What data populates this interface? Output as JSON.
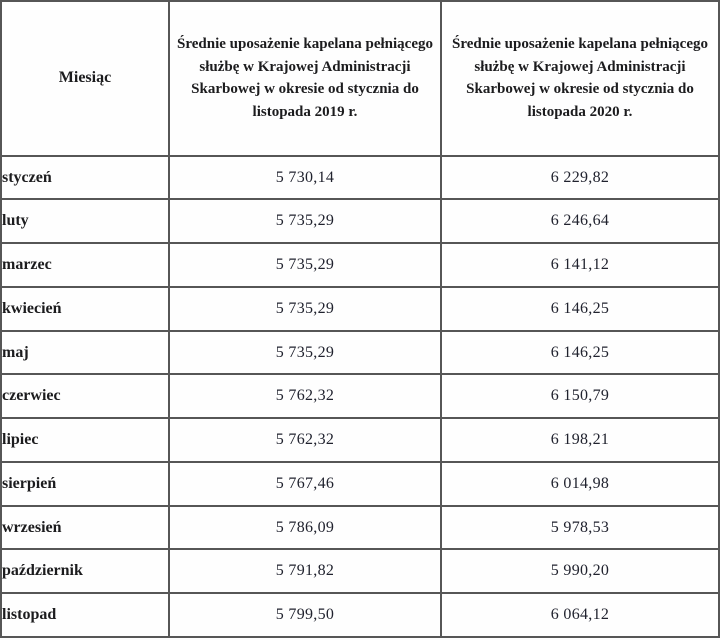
{
  "table": {
    "columns": {
      "month": "Miesiąc",
      "y2019": "Średnie uposażenie kapelana pełniącego służbę w Krajowej Administracji Skarbowej w okresie od stycznia do listopada 2019 r.",
      "y2020": "Średnie uposażenie kapelana pełniącego służbę w Krajowej Administracji Skarbowej w okresie od stycznia do listopada 2020 r."
    },
    "rows": [
      {
        "month": "styczeń",
        "v2019": "5 730,14",
        "v2020": "6 229,82"
      },
      {
        "month": "luty",
        "v2019": "5 735,29",
        "v2020": "6 246,64"
      },
      {
        "month": "marzec",
        "v2019": "5 735,29",
        "v2020": "6 141,12"
      },
      {
        "month": "kwiecień",
        "v2019": "5 735,29",
        "v2020": "6 146,25"
      },
      {
        "month": "maj",
        "v2019": "5 735,29",
        "v2020": "6 146,25"
      },
      {
        "month": "czerwiec",
        "v2019": "5 762,32",
        "v2020": "6 150,79"
      },
      {
        "month": "lipiec",
        "v2019": "5 762,32",
        "v2020": "6 198,21"
      },
      {
        "month": "sierpień",
        "v2019": "5 767,46",
        "v2020": "6 014,98"
      },
      {
        "month": "wrzesień",
        "v2019": "5 786,09",
        "v2020": "5 978,53"
      },
      {
        "month": "październik",
        "v2019": "5 791,82",
        "v2020": "5 990,20"
      },
      {
        "month": "listopad",
        "v2019": "5 799,50",
        "v2020": "6 064,12"
      }
    ]
  },
  "colors": {
    "border": "#565656",
    "text": "#1c1c1e",
    "background": "#fdfdfd"
  },
  "chart_data": {
    "type": "table",
    "title": "",
    "categories": [
      "styczeń",
      "luty",
      "marzec",
      "kwiecień",
      "maj",
      "czerwiec",
      "lipiec",
      "sierpień",
      "wrzesień",
      "październik",
      "listopad"
    ],
    "series": [
      {
        "name": "Średnie uposażenie kapelana KAS, styczeń–listopad 2019 r.",
        "values": [
          5730.14,
          5735.29,
          5735.29,
          5735.29,
          5735.29,
          5762.32,
          5762.32,
          5767.46,
          5786.09,
          5791.82,
          5799.5
        ]
      },
      {
        "name": "Średnie uposażenie kapelana KAS, styczeń–listopad 2020 r.",
        "values": [
          6229.82,
          6246.64,
          6141.12,
          6146.25,
          6146.25,
          6150.79,
          6198.21,
          6014.98,
          5978.53,
          5990.2,
          6064.12
        ]
      }
    ]
  }
}
